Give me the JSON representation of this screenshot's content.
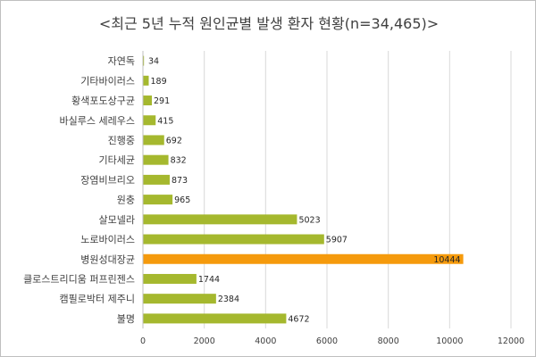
{
  "chart_data": {
    "type": "bar",
    "orientation": "horizontal",
    "title": "<최근 5년 누적 원인균별 발생 환자 현황(n=34,465)>",
    "categories": [
      "자연독",
      "기타바이러스",
      "황색포도상구균",
      "바실루스 세레우스",
      "진행중",
      "기타세균",
      "장염비브리오",
      "원충",
      "살모넬라",
      "노로바이러스",
      "병원성대장균",
      "클로스트리디움 퍼프린젠스",
      "캠필로박터 제주니",
      "불명"
    ],
    "values": [
      34,
      189,
      291,
      415,
      692,
      832,
      873,
      965,
      5023,
      5907,
      10444,
      1744,
      2384,
      4672
    ],
    "data_labels": [
      "34",
      "189",
      "291",
      "415",
      "692",
      "832",
      "873",
      "965",
      "5023",
      "5907",
      "10444",
      "1744",
      "2384",
      "4672"
    ],
    "highlight_category": "병원성대장균",
    "xlim": [
      0,
      12000
    ],
    "xticks": [
      "0",
      "2000",
      "4000",
      "6000",
      "8000",
      "10000",
      "12000"
    ],
    "grid": "vertical",
    "xlabel": "",
    "ylabel": "",
    "colors": {
      "bar": "#a5b82e",
      "highlight": "#f59a0c",
      "grid": "#d9d9d9",
      "axis": "#bfbfbf",
      "text": "#404040"
    }
  }
}
